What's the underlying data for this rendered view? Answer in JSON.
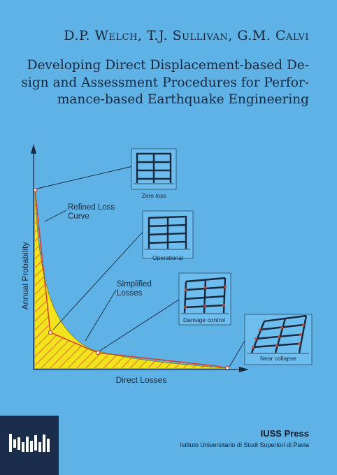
{
  "cover": {
    "authors": "D.P. Welch, T.J. Sullivan, G.M. Calvi",
    "title_lines": [
      "Developing Direct Displacement-based De-",
      "sign and Assessment Procedures for Perfor-",
      "mance-based Earthquake Engineering"
    ]
  },
  "figure": {
    "y_axis_label": "Annual Probability",
    "x_axis_label": "Direct Losses",
    "refined_label_lines": [
      "Refined Loss",
      "Curve"
    ],
    "simplified_label_lines": [
      "Simplified",
      "Losses"
    ],
    "states": [
      "Zero loss",
      "Operational",
      "Damage control",
      "Near collapse"
    ],
    "colors": {
      "background": "#5fb2e6",
      "fill_yellow": "#f2e31c",
      "curve_red": "#d6402a",
      "ink": "#17283d"
    }
  },
  "publisher": {
    "name": "IUSS Press",
    "institution": "Istituto Universitario di Studi Superiori di Pavia"
  }
}
